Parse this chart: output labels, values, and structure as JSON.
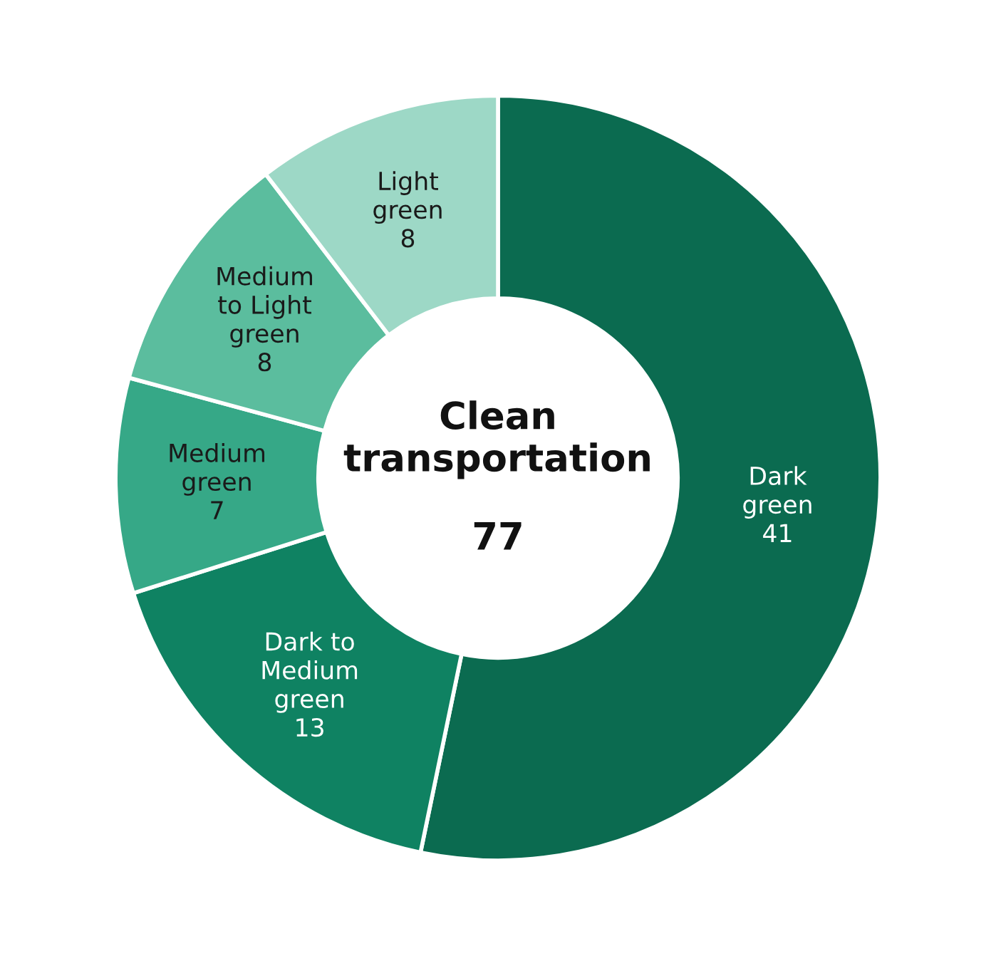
{
  "chart_data": {
    "type": "donut",
    "title": "Clean\ntransportation",
    "annotations": [
      "77"
    ],
    "categories": [
      "Dark\ngreen",
      "Dark to\nMedium\ngreen",
      "Medium\ngreen",
      "Medium\nto Light\ngreen",
      "Light\ngreen"
    ],
    "values": [
      41,
      13,
      7,
      8,
      8
    ],
    "colors": [
      "#0b6b50",
      "#0f8262",
      "#36a887",
      "#5bbd9e",
      "#9dd8c6"
    ],
    "data_labels": true,
    "legend": false
  }
}
